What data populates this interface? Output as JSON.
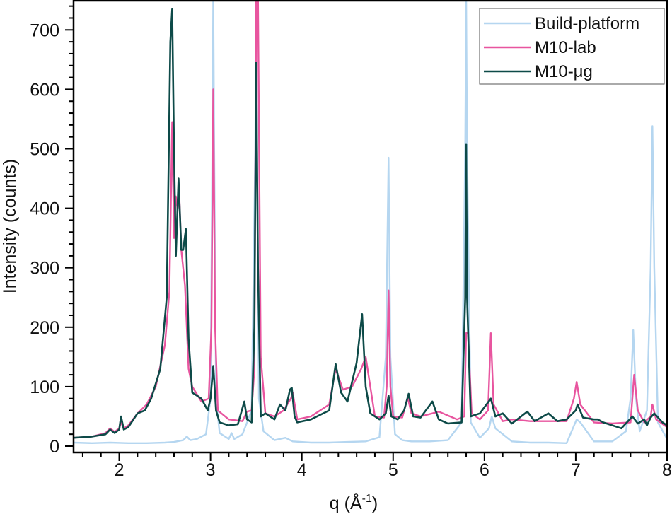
{
  "chart_data": {
    "type": "line",
    "title": "",
    "xlabel": "q (Å⁻¹)",
    "xlabel_parts": {
      "main": "q (Å",
      "sup": "-1",
      "close": ")"
    },
    "ylabel": "Intensity (counts)",
    "xlim": [
      1.5,
      8
    ],
    "ylim": [
      -10,
      750
    ],
    "xticks": [
      2,
      3,
      4,
      5,
      6,
      7,
      8
    ],
    "xticks_minor_step": 0.2,
    "yticks": [
      0,
      100,
      200,
      300,
      400,
      500,
      600,
      700
    ],
    "yticks_minor_step": 20,
    "grid": false,
    "legend_position": "upper right",
    "series": [
      {
        "name": "Build-platform",
        "color": "#b5d6f0",
        "x": [
          1.5,
          1.7,
          1.9,
          2.1,
          2.3,
          2.5,
          2.6,
          2.7,
          2.74,
          2.78,
          2.85,
          2.95,
          3.0,
          3.02,
          3.03,
          3.04,
          3.06,
          3.1,
          3.2,
          3.23,
          3.26,
          3.35,
          3.45,
          3.49,
          3.5,
          3.51,
          3.53,
          3.58,
          3.7,
          3.82,
          3.9,
          4.1,
          4.3,
          4.5,
          4.7,
          4.85,
          4.92,
          4.95,
          4.97,
          5.02,
          5.1,
          5.2,
          5.4,
          5.6,
          5.75,
          5.79,
          5.8,
          5.81,
          5.85,
          5.95,
          6.05,
          6.08,
          6.12,
          6.3,
          6.5,
          6.7,
          6.9,
          7.01,
          7.05,
          7.2,
          7.4,
          7.55,
          7.6,
          7.63,
          7.66,
          7.7,
          7.78,
          7.82,
          7.84,
          7.86,
          7.9,
          8.0
        ],
        "values": [
          6,
          5,
          6,
          5,
          5,
          6,
          7,
          10,
          16,
          10,
          12,
          20,
          80,
          500,
          760,
          500,
          80,
          22,
          12,
          22,
          12,
          20,
          60,
          500,
          760,
          500,
          80,
          25,
          10,
          14,
          8,
          6,
          6,
          7,
          8,
          15,
          150,
          485,
          150,
          20,
          10,
          8,
          8,
          10,
          40,
          500,
          760,
          500,
          40,
          14,
          30,
          50,
          30,
          8,
          6,
          6,
          5,
          45,
          40,
          8,
          8,
          25,
          80,
          195,
          80,
          25,
          60,
          300,
          538,
          300,
          40,
          12
        ]
      },
      {
        "name": "M10-lab",
        "color": "#e8559f",
        "x": [
          1.5,
          1.7,
          1.85,
          1.9,
          1.95,
          2.0,
          2.02,
          2.05,
          2.1,
          2.2,
          2.3,
          2.4,
          2.5,
          2.55,
          2.58,
          2.6,
          2.62,
          2.64,
          2.66,
          2.68,
          2.72,
          2.76,
          2.8,
          2.9,
          2.98,
          3.01,
          3.03,
          3.05,
          3.08,
          3.2,
          3.35,
          3.4,
          3.45,
          3.48,
          3.5,
          3.52,
          3.55,
          3.6,
          3.7,
          3.8,
          3.88,
          3.9,
          3.95,
          4.1,
          4.3,
          4.37,
          4.45,
          4.55,
          4.65,
          4.7,
          4.8,
          4.9,
          4.93,
          4.95,
          4.97,
          5.0,
          5.1,
          5.16,
          5.2,
          5.3,
          5.43,
          5.5,
          5.7,
          5.78,
          5.8,
          5.82,
          5.86,
          5.95,
          6.04,
          6.07,
          6.1,
          6.2,
          6.3,
          6.5,
          6.7,
          6.9,
          6.98,
          7.01,
          7.05,
          7.2,
          7.4,
          7.6,
          7.64,
          7.68,
          7.75,
          7.82,
          7.84,
          7.88,
          8.0
        ],
        "values": [
          14,
          16,
          22,
          30,
          24,
          30,
          40,
          30,
          35,
          55,
          70,
          100,
          170,
          260,
          545,
          350,
          420,
          400,
          415,
          330,
          270,
          130,
          100,
          75,
          80,
          200,
          600,
          200,
          60,
          45,
          42,
          58,
          60,
          130,
          760,
          760,
          150,
          55,
          50,
          60,
          80,
          90,
          45,
          50,
          70,
          130,
          95,
          100,
          130,
          150,
          50,
          48,
          100,
          262,
          100,
          50,
          48,
          82,
          55,
          50,
          55,
          58,
          45,
          50,
          190,
          190,
          55,
          45,
          60,
          190,
          70,
          42,
          45,
          42,
          42,
          42,
          80,
          108,
          70,
          40,
          38,
          40,
          120,
          60,
          40,
          50,
          70,
          45,
          32
        ]
      },
      {
        "name": "M10-μg",
        "color": "#0d4a48",
        "x": [
          1.5,
          1.7,
          1.85,
          1.9,
          1.95,
          2.0,
          2.02,
          2.05,
          2.1,
          2.2,
          2.28,
          2.35,
          2.45,
          2.52,
          2.56,
          2.58,
          2.6,
          2.62,
          2.65,
          2.68,
          2.7,
          2.73,
          2.76,
          2.8,
          2.9,
          2.97,
          3.0,
          3.03,
          3.06,
          3.1,
          3.2,
          3.3,
          3.37,
          3.4,
          3.45,
          3.48,
          3.5,
          3.52,
          3.55,
          3.6,
          3.7,
          3.76,
          3.82,
          3.87,
          3.89,
          3.92,
          3.95,
          4.1,
          4.3,
          4.37,
          4.43,
          4.5,
          4.6,
          4.66,
          4.7,
          4.75,
          4.85,
          4.92,
          4.95,
          4.98,
          5.05,
          5.12,
          5.17,
          5.22,
          5.3,
          5.43,
          5.5,
          5.6,
          5.75,
          5.79,
          5.8,
          5.81,
          5.85,
          5.95,
          6.07,
          6.12,
          6.2,
          6.3,
          6.47,
          6.55,
          6.7,
          6.8,
          6.9,
          7.0,
          7.02,
          7.08,
          7.2,
          7.24,
          7.3,
          7.5,
          7.62,
          7.68,
          7.75,
          7.78,
          7.82,
          7.86,
          7.95,
          8.0
        ],
        "values": [
          14,
          16,
          20,
          28,
          22,
          28,
          50,
          28,
          32,
          55,
          60,
          80,
          130,
          250,
          680,
          735,
          500,
          320,
          450,
          330,
          330,
          365,
          180,
          90,
          80,
          60,
          80,
          135,
          60,
          40,
          35,
          37,
          75,
          45,
          40,
          200,
          645,
          300,
          50,
          55,
          45,
          70,
          60,
          95,
          98,
          50,
          40,
          45,
          60,
          138,
          90,
          75,
          140,
          222,
          100,
          55,
          45,
          55,
          85,
          50,
          45,
          60,
          88,
          50,
          48,
          75,
          45,
          38,
          40,
          250,
          508,
          250,
          50,
          55,
          80,
          50,
          55,
          38,
          58,
          42,
          55,
          42,
          45,
          60,
          70,
          48,
          45,
          45,
          40,
          30,
          50,
          38,
          45,
          35,
          48,
          55,
          40,
          35
        ]
      }
    ]
  }
}
